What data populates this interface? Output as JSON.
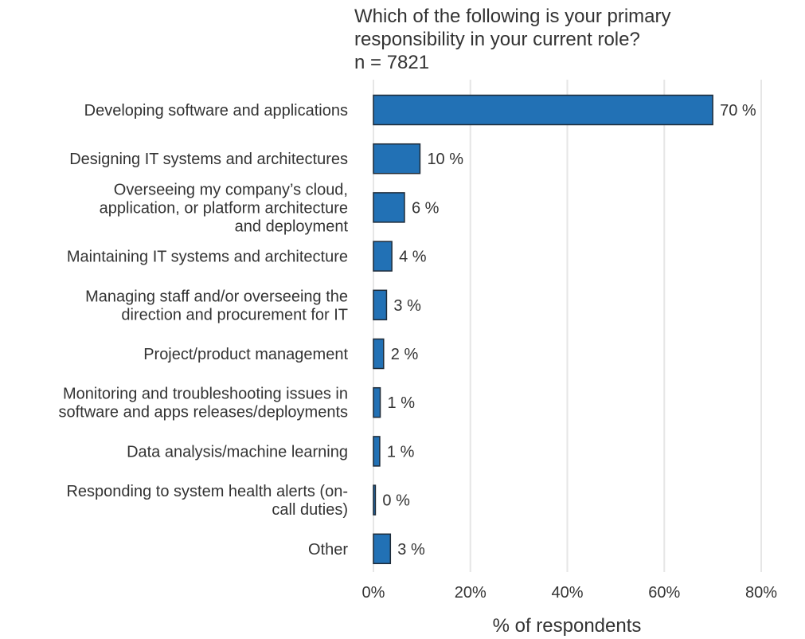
{
  "chart_data": {
    "type": "bar",
    "orientation": "horizontal",
    "title": "Which of the following is your primary responsibility in your current role?",
    "title_lines": [
      "Which of the following is your primary",
      "responsibility in your current role?"
    ],
    "subtitle": "n = 7821",
    "categories": [
      "Developing software and applications",
      "Designing IT systems and architectures",
      "Overseeing my company’s cloud, application, or platform architecture and deployment",
      "Maintaining IT systems and architecture",
      "Managing staff and/or overseeing the direction and procurement for IT",
      "Project/product management",
      "Monitoring and troubleshooting issues in software and apps releases/deployments",
      "Data analysis/machine learning",
      "Responding to system health alerts (on-call duties)",
      "Other"
    ],
    "category_lines": [
      [
        "Developing software and applications"
      ],
      [
        "Designing IT systems and architectures"
      ],
      [
        "Overseeing my company’s cloud,",
        "application, or platform architecture",
        "and deployment"
      ],
      [
        "Maintaining IT systems and architecture"
      ],
      [
        "Managing staff and/or overseeing the",
        "direction and procurement for IT"
      ],
      [
        "Project/product management"
      ],
      [
        "Monitoring and troubleshooting issues in",
        "software and apps releases/deployments"
      ],
      [
        "Data analysis/machine learning"
      ],
      [
        "Responding to system health alerts (on-",
        "call duties)"
      ],
      [
        "Other"
      ]
    ],
    "values": [
      70,
      9.6,
      6.4,
      3.8,
      2.7,
      2.1,
      1.4,
      1.3,
      0.4,
      3.5
    ],
    "value_labels": [
      "70 %",
      "10 %",
      "6 %",
      "4 %",
      "3 %",
      "2 %",
      "1 %",
      "1 %",
      "0 %",
      "3 %"
    ],
    "xlabel": "% of respondents",
    "ylabel": "",
    "xlim": [
      0,
      80
    ],
    "xticks": [
      0,
      20,
      40,
      60,
      80
    ],
    "xtick_labels": [
      "0%",
      "20%",
      "40%",
      "60%",
      "80%"
    ],
    "grid": "vertical",
    "legend": "none",
    "colors": {
      "bar": "#2271b5",
      "bar_edge": "#1e2b38",
      "grid": "#e6e6e6",
      "text": "#333333"
    }
  }
}
